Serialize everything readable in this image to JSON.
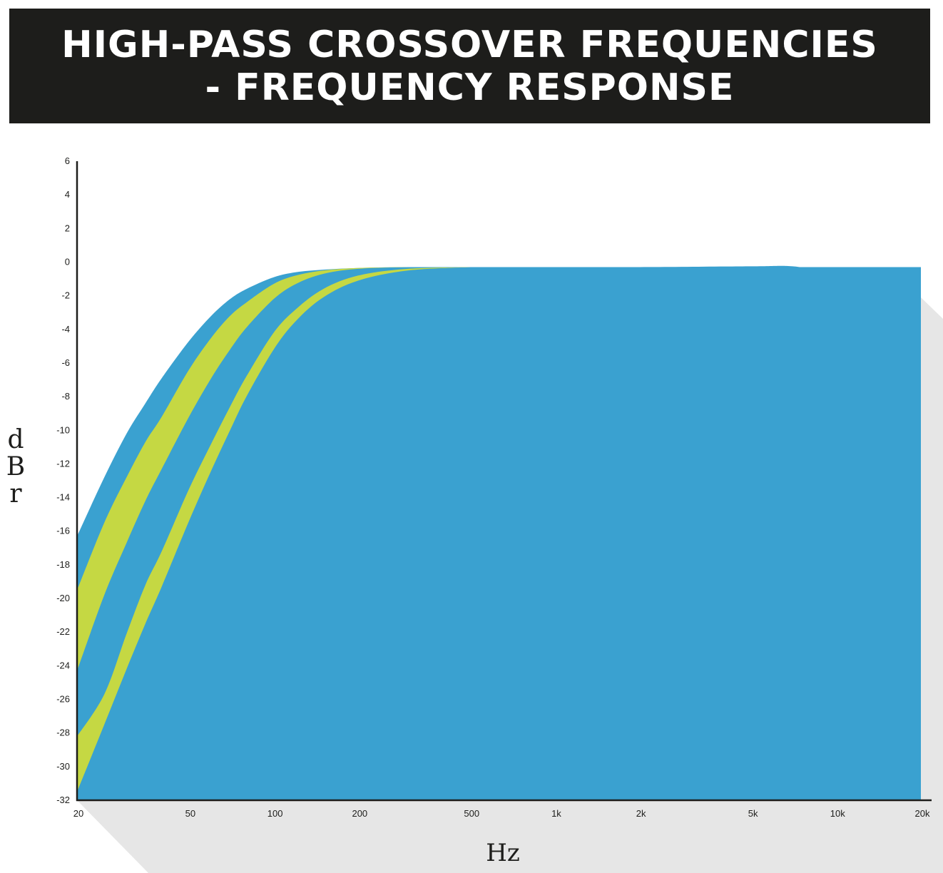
{
  "title": {
    "line1": "HIGH-PASS CROSSOVER FREQUENCIES",
    "line2": "- FREQUENCY RESPONSE"
  },
  "colors": {
    "title_bg": "#1d1d1b",
    "title_text": "#ffffff",
    "blue": "#3aa1d0",
    "green": "#c5d843",
    "shadow": "#dcdcdc",
    "axis": "#1d1d1b"
  },
  "chart_data": {
    "type": "area",
    "xlabel": "Hz",
    "ylabel": "dBr",
    "xscale": "log",
    "xlim": [
      20,
      20000
    ],
    "ylim": [
      -32,
      6
    ],
    "xticks": [
      20,
      50,
      100,
      200,
      500,
      1000,
      2000,
      5000,
      10000,
      20000
    ],
    "xtick_labels": [
      "20",
      "50",
      "100",
      "200",
      "500",
      "1k",
      "2k",
      "5k",
      "10k",
      "20k"
    ],
    "yticks": [
      6,
      4,
      2,
      0,
      -2,
      -4,
      -6,
      -8,
      -10,
      -12,
      -14,
      -16,
      -18,
      -20,
      -22,
      -24,
      -26,
      -28,
      -30,
      -32
    ],
    "grid": false,
    "series": [
      {
        "color": "#3aa1d0",
        "x": [
          20,
          25,
          30,
          35,
          40,
          50,
          60,
          70,
          80,
          100,
          120,
          150,
          200,
          300,
          500,
          1000,
          2000,
          5000,
          7000,
          9000,
          11000,
          13000,
          15000,
          20000
        ],
        "y": [
          -16.3,
          -12.8,
          -10.2,
          -8.4,
          -6.9,
          -4.7,
          -3.2,
          -2.2,
          -1.6,
          -0.9,
          -0.6,
          -0.45,
          -0.35,
          -0.3,
          -0.3,
          -0.3,
          -0.3,
          -0.25,
          -0.25,
          -0.6,
          -1.1,
          -1.2,
          -1.2,
          -2.1
        ]
      },
      {
        "color": "#c5d843",
        "x": [
          20,
          25,
          30,
          35,
          40,
          50,
          60,
          70,
          80,
          100,
          120,
          150,
          200,
          300
        ],
        "y": [
          -19.5,
          -15.5,
          -12.8,
          -10.7,
          -9.2,
          -6.4,
          -4.5,
          -3.2,
          -2.4,
          -1.3,
          -0.8,
          -0.5,
          -0.35,
          -0.3
        ]
      },
      {
        "color": "#3aa1d0",
        "x": [
          20,
          25,
          30,
          35,
          40,
          50,
          60,
          70,
          80,
          100,
          120,
          150,
          200,
          300
        ],
        "y": [
          -24.3,
          -19.8,
          -16.7,
          -14.2,
          -12.3,
          -9.2,
          -6.9,
          -5.2,
          -3.9,
          -2.2,
          -1.3,
          -0.7,
          -0.4,
          -0.3
        ]
      },
      {
        "color": "#c5d843",
        "x": [
          20,
          25,
          30,
          35,
          40,
          50,
          60,
          70,
          80,
          100,
          120,
          150,
          200,
          300,
          500
        ],
        "y": [
          -28.2,
          -25.7,
          -22.1,
          -19.2,
          -17.2,
          -13.5,
          -10.8,
          -8.6,
          -6.8,
          -4.2,
          -2.8,
          -1.6,
          -0.8,
          -0.4,
          -0.3
        ]
      },
      {
        "color": "#3aa1d0",
        "x": [
          20,
          25,
          30,
          35,
          40,
          50,
          60,
          70,
          80,
          100,
          120,
          150,
          200,
          300,
          500
        ],
        "y": [
          -31.5,
          -27.5,
          -24.2,
          -21.5,
          -19.3,
          -15.4,
          -12.4,
          -10.0,
          -8.0,
          -5.2,
          -3.5,
          -2.1,
          -1.1,
          -0.5,
          -0.3
        ]
      }
    ]
  }
}
